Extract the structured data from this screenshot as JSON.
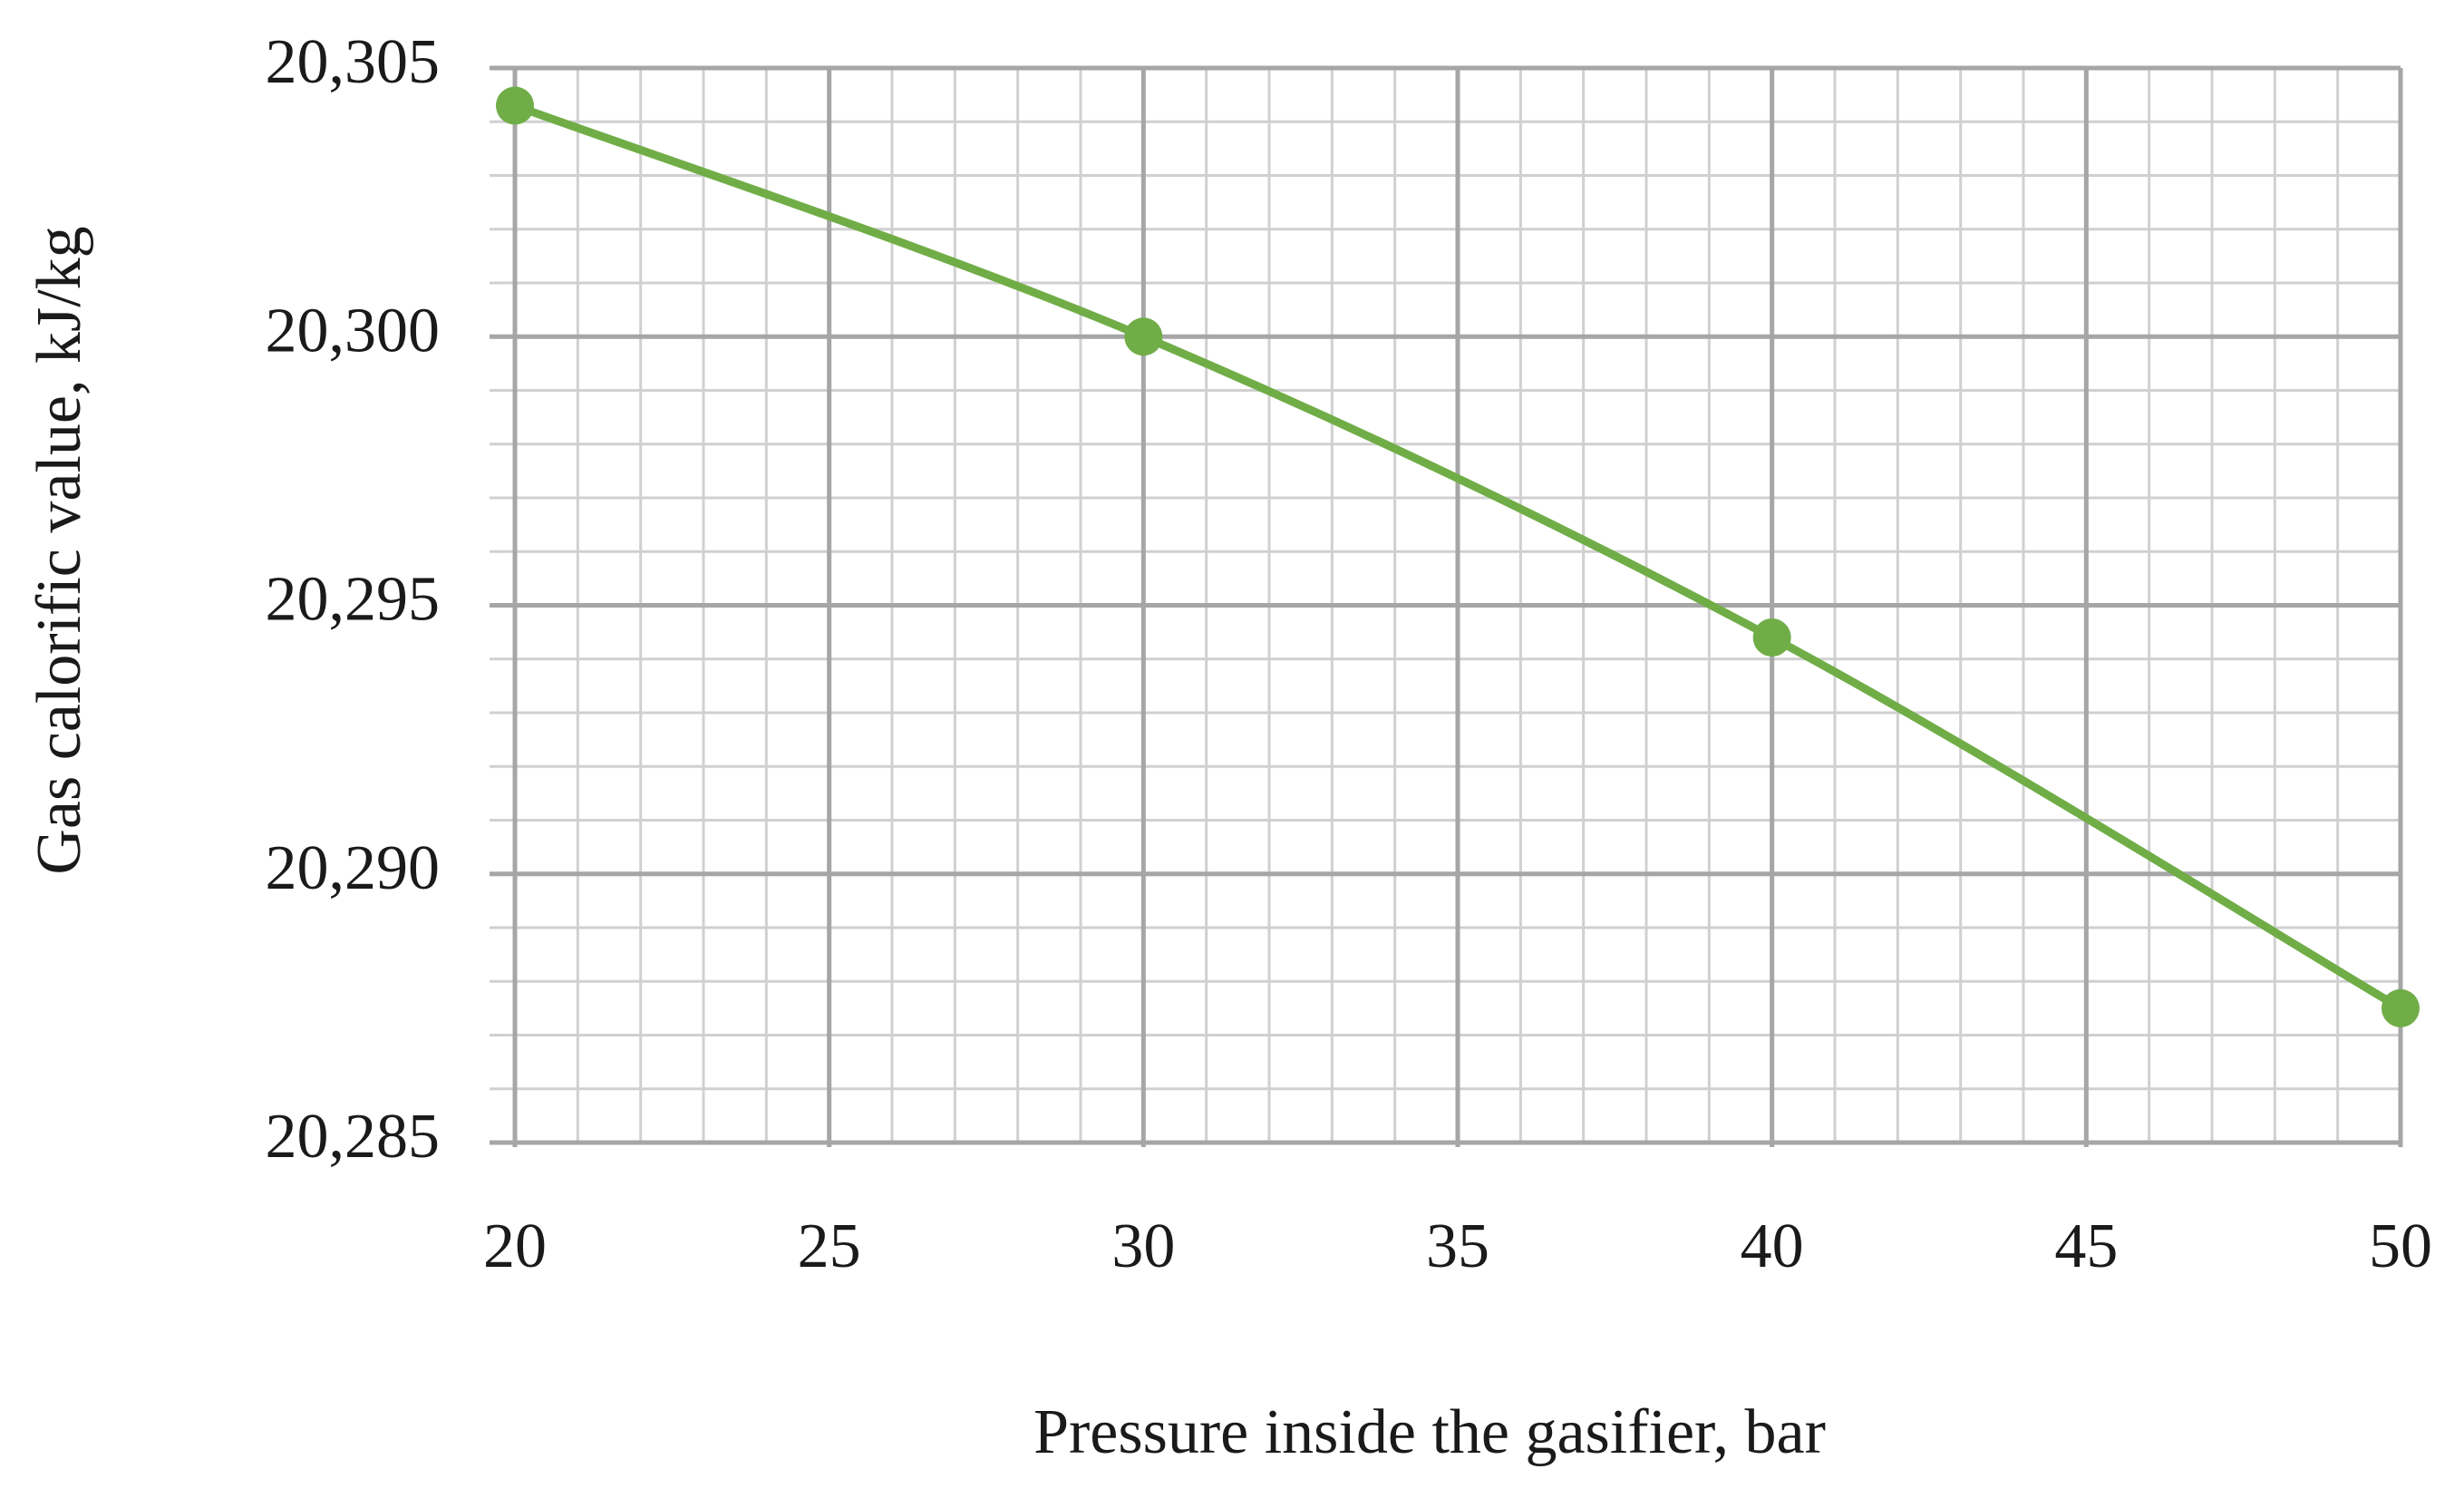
{
  "chart_data": {
    "type": "line",
    "x_label": "Pressure inside the gasifier, bar",
    "y_label": "Gas calorific value, kJ/kg",
    "series": [
      {
        "name": "Gas calorific value",
        "color": "#70ad47",
        "x": [
          20,
          30,
          40,
          50
        ],
        "values": [
          20304.3,
          20300,
          20294.4,
          20287.5
        ]
      }
    ],
    "xlim": [
      20,
      50
    ],
    "xticks": [
      20,
      25,
      30,
      35,
      40,
      45,
      50
    ],
    "ylim": [
      20285,
      20305
    ],
    "yticks": [
      {
        "value": 20285,
        "label": "20,285"
      },
      {
        "value": 20290,
        "label": "20,290"
      },
      {
        "value": 20295,
        "label": "20,295"
      },
      {
        "value": 20300,
        "label": "20,300"
      },
      {
        "value": 20305,
        "label": "20,305"
      }
    ],
    "grid": true,
    "minor_grid": true,
    "smooth": true,
    "markers": true
  }
}
